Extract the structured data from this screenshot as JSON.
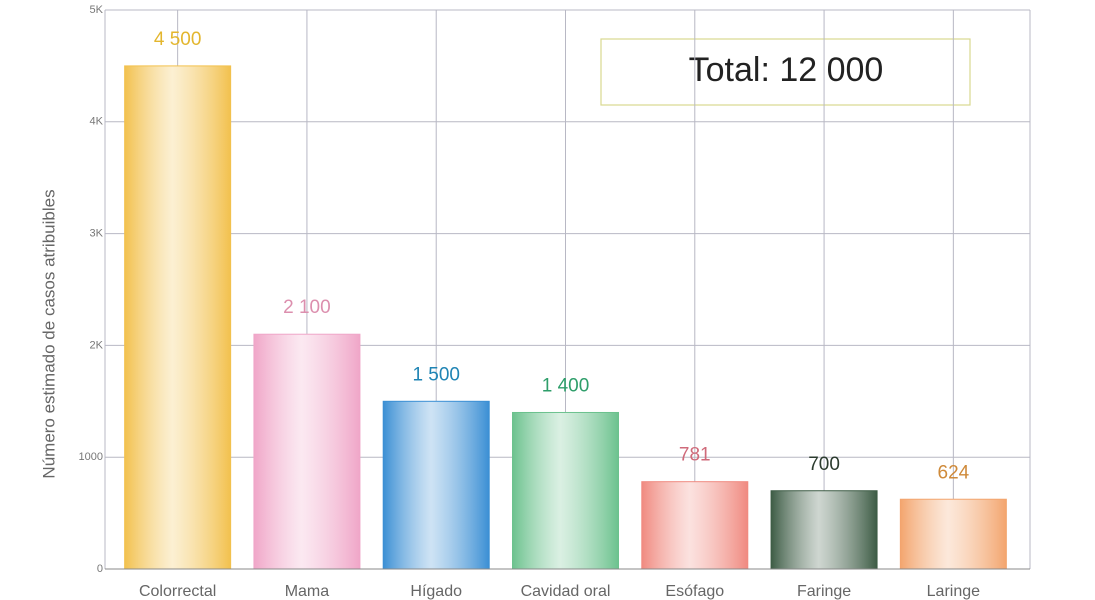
{
  "chart_data": {
    "type": "bar",
    "y_label": "Número estimado de casos atribuibles",
    "annotation": "Total: 12 000",
    "categories": [
      "Colorrectal",
      "Mama",
      "Hígado",
      "Cavidad oral",
      "Esófago",
      "Faringe",
      "Laringe"
    ],
    "values": [
      4500,
      2100,
      1500,
      1400,
      781,
      700,
      624
    ],
    "value_labels": [
      "4 500",
      "2 100",
      "1 500",
      "1 400",
      "781",
      "700",
      "624"
    ],
    "colors": [
      "#f2c14e",
      "#f0a6c8",
      "#3b8fd4",
      "#6cc28e",
      "#f08a80",
      "#3d5c45",
      "#f3a56e"
    ],
    "label_colors": [
      "#e3b62e",
      "#dc8fae",
      "#1f84b4",
      "#2e9e6a",
      "#cf6a7a",
      "#2b3b2e",
      "#cf8a3a"
    ],
    "ylim": [
      0,
      5000
    ],
    "yticks": [
      0,
      1000,
      {
        "value": 2000,
        "label": "2K"
      },
      {
        "value": 3000,
        "label": "3K"
      },
      {
        "value": 4000,
        "label": "4K"
      },
      {
        "value": 5000,
        "label": "5K"
      }
    ],
    "grid": true
  }
}
